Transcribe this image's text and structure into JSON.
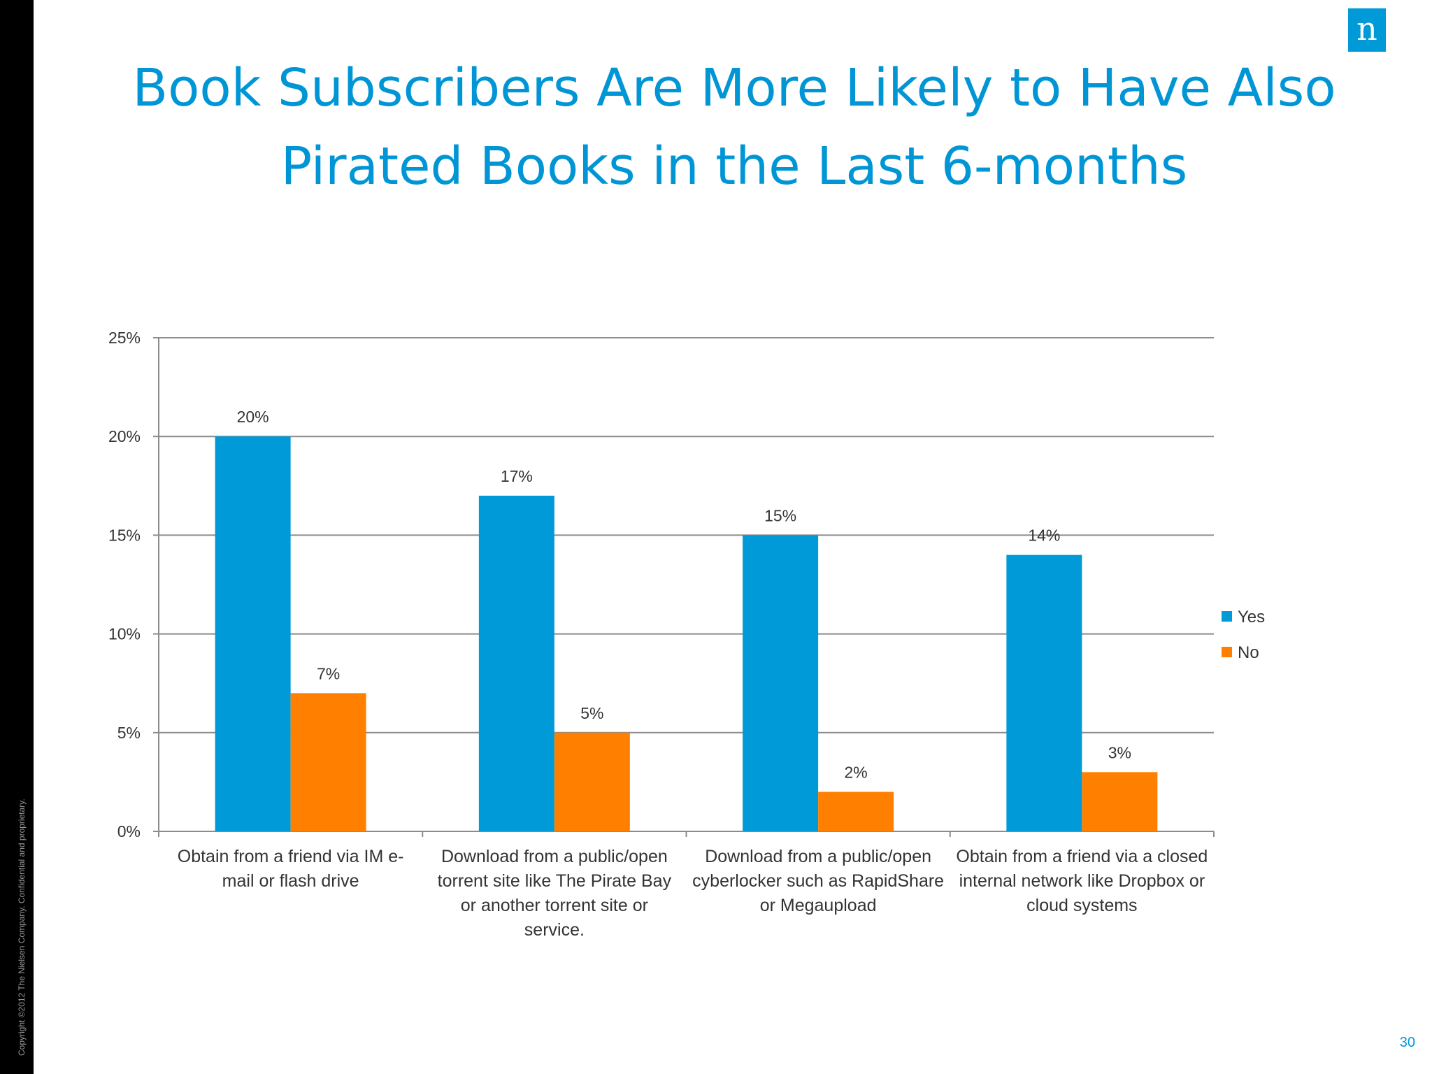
{
  "slide": {
    "title_line1": "Book Subscribers Are More Likely to Have Also",
    "title_line2": "Pirated Books in the Last 6-months",
    "page_number": "30",
    "copyright": "Copyright ©2012 The Nielsen Company. Confidential and proprietary.",
    "logo_letter": "n"
  },
  "colors": {
    "title": "#0096d6",
    "yes": "#009ad8",
    "no": "#ff8000",
    "axis": "#8c8c8c"
  },
  "chart_data": {
    "type": "bar",
    "categories": [
      [
        "Obtain from a friend via IM  e-",
        "mail  or flash drive"
      ],
      [
        "Download from a public/open",
        "torrent site  like The Pirate Bay",
        "or another torrent site or",
        "service."
      ],
      [
        "Download from a public/open",
        "cyberlocker such as RapidShare",
        "or Megaupload"
      ],
      [
        "Obtain from a friend via a closed",
        "internal network like Dropbox or",
        "cloud systems"
      ]
    ],
    "series": [
      {
        "name": "Yes",
        "values": [
          20,
          17,
          15,
          14
        ],
        "labels": [
          "20%",
          "17%",
          "15%",
          "14%"
        ]
      },
      {
        "name": "No",
        "values": [
          7,
          5,
          2,
          3
        ],
        "labels": [
          "7%",
          "5%",
          "2%",
          "3%"
        ]
      }
    ],
    "ylim": [
      0,
      25
    ],
    "yticks": [
      "0%",
      "5%",
      "10%",
      "15%",
      "20%",
      "25%"
    ],
    "ytick_values": [
      0,
      5,
      10,
      15,
      20,
      25
    ],
    "grid": true,
    "legend_position": "right"
  }
}
